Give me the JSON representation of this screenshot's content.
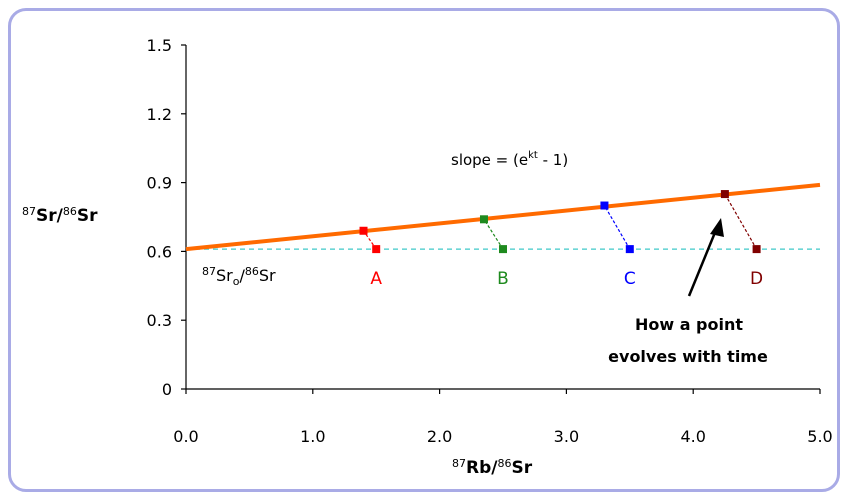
{
  "chart_data": {
    "type": "scatter",
    "ylabel_iso1": "87",
    "ylabel_el1": "Sr/",
    "ylabel_iso2": "86",
    "ylabel_el2": "Sr",
    "xlabel_iso1": "87",
    "xlabel_el1": "Rb/",
    "xlabel_iso2": "86",
    "xlabel_el2": "Sr",
    "xlim": [
      0.0,
      5.0
    ],
    "ylim": [
      0,
      1.5
    ],
    "x_ticks": [
      {
        "value": 0.0,
        "label": "0.0"
      },
      {
        "value": 1.0,
        "label": "1.0"
      },
      {
        "value": 2.0,
        "label": "2.0"
      },
      {
        "value": 3.0,
        "label": "3.0"
      },
      {
        "value": 4.0,
        "label": "4.0"
      },
      {
        "value": 5.0,
        "label": "5.0"
      }
    ],
    "y_ticks": [
      {
        "value": 0,
        "label": "0"
      },
      {
        "value": 0.3,
        "label": "0.3"
      },
      {
        "value": 0.6,
        "label": "0.6"
      },
      {
        "value": 0.9,
        "label": "0.9"
      },
      {
        "value": 1.2,
        "label": "1.2"
      },
      {
        "value": 1.5,
        "label": "1.5"
      }
    ],
    "initial_ratio": 0.61,
    "initial_label_iso1": "87",
    "initial_label_el1": "Sr",
    "initial_label_sub": "o",
    "initial_label_sep": "/",
    "initial_label_iso2": "86",
    "initial_label_el2": "Sr",
    "isochron": {
      "x": [
        0.0,
        5.0
      ],
      "y": [
        0.61,
        0.89
      ],
      "color": "#ff6a00"
    },
    "slope_label_prefix": "slope = (e",
    "slope_label_sup": "kt",
    "slope_label_suffix": " - 1)",
    "points": [
      {
        "label": "A",
        "color": "#ff0000",
        "initial": {
          "x": 1.5,
          "y": 0.61
        },
        "evolved": {
          "x": 1.4,
          "y": 0.69
        }
      },
      {
        "label": "B",
        "color": "#1e8a1e",
        "initial": {
          "x": 2.5,
          "y": 0.61
        },
        "evolved": {
          "x": 2.35,
          "y": 0.74
        }
      },
      {
        "label": "C",
        "color": "#0000ff",
        "initial": {
          "x": 3.5,
          "y": 0.61
        },
        "evolved": {
          "x": 3.3,
          "y": 0.8
        }
      },
      {
        "label": "D",
        "color": "#800000",
        "initial": {
          "x": 4.5,
          "y": 0.61
        },
        "evolved": {
          "x": 4.25,
          "y": 0.85
        }
      }
    ],
    "annotation_line1": "How a point",
    "annotation_line2": "evolves with time",
    "colors": {
      "frame": "#a9abe6",
      "reference_line": "#3fc9c9"
    }
  }
}
